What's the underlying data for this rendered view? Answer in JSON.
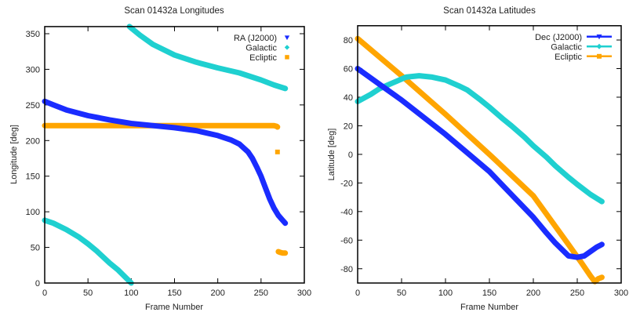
{
  "chart_data": [
    {
      "type": "scatter",
      "title": "Scan 01432a Longitudes",
      "xlabel": "Frame Number",
      "ylabel": "Longitude [deg]",
      "xlim": [
        0,
        300
      ],
      "ylim": [
        0,
        360
      ],
      "xticks": [
        0,
        50,
        100,
        150,
        200,
        250,
        300
      ],
      "yticks": [
        0,
        50,
        100,
        150,
        200,
        250,
        300,
        350
      ],
      "grid": false,
      "legend_position": "top-right",
      "legend_style": "points",
      "series": [
        {
          "name": "RA (J2000)",
          "color": "#1a2cff",
          "marker": "triangle-down",
          "segments": [
            [
              [
                0,
                255
              ],
              [
                10,
                250
              ],
              [
                25,
                243
              ],
              [
                50,
                235
              ],
              [
                75,
                229
              ],
              [
                100,
                224
              ],
              [
                125,
                221
              ],
              [
                150,
                218
              ],
              [
                175,
                214
              ],
              [
                200,
                207
              ],
              [
                215,
                201
              ],
              [
                225,
                195
              ],
              [
                235,
                184
              ],
              [
                240,
                175
              ],
              [
                245,
                163
              ],
              [
                250,
                150
              ],
              [
                255,
                134
              ],
              [
                260,
                118
              ],
              [
                265,
                105
              ],
              [
                270,
                95
              ],
              [
                275,
                88
              ],
              [
                278,
                84
              ]
            ]
          ]
        },
        {
          "name": "Galactic",
          "color": "#1fd0d0",
          "marker": "diamond",
          "segments": [
            [
              [
                0,
                88
              ],
              [
                10,
                84
              ],
              [
                25,
                75
              ],
              [
                40,
                64
              ],
              [
                50,
                55
              ],
              [
                60,
                45
              ],
              [
                75,
                28
              ],
              [
                85,
                18
              ],
              [
                100,
                0
              ]
            ],
            [
              [
                98,
                360
              ],
              [
                110,
                348
              ],
              [
                125,
                335
              ],
              [
                150,
                320
              ],
              [
                175,
                310
              ],
              [
                200,
                302
              ],
              [
                225,
                295
              ],
              [
                250,
                285
              ],
              [
                265,
                278
              ],
              [
                278,
                273
              ]
            ]
          ]
        },
        {
          "name": "Ecliptic",
          "color": "#ffa500",
          "marker": "square",
          "segments": [
            [
              [
                0,
                221
              ],
              [
                50,
                221
              ],
              [
                100,
                221
              ],
              [
                150,
                221
              ],
              [
                200,
                221
              ],
              [
                250,
                221
              ],
              [
                265,
                221
              ],
              [
                268,
                220
              ],
              [
                269,
                219
              ]
            ],
            [
              [
                269,
                184
              ]
            ],
            [
              [
                270,
                44
              ],
              [
                272,
                43
              ],
              [
                275,
                42
              ],
              [
                278,
                42
              ]
            ]
          ]
        }
      ]
    },
    {
      "type": "line",
      "title": "Scan 01432a Latitudes",
      "xlabel": "Frame Number",
      "ylabel": "Latitude [deg]",
      "xlim": [
        0,
        300
      ],
      "ylim": [
        -90,
        90
      ],
      "xticks": [
        0,
        50,
        100,
        150,
        200,
        250,
        300
      ],
      "yticks": [
        -80,
        -60,
        -40,
        -20,
        0,
        20,
        40,
        60,
        80
      ],
      "grid": false,
      "legend_position": "top-right",
      "legend_style": "linespoints",
      "series": [
        {
          "name": "Dec (J2000)",
          "color": "#1a2cff",
          "marker": "triangle-down",
          "segments": [
            [
              [
                0,
                60
              ],
              [
                25,
                49
              ],
              [
                50,
                38
              ],
              [
                75,
                26
              ],
              [
                100,
                14
              ],
              [
                125,
                1
              ],
              [
                150,
                -12
              ],
              [
                175,
                -28
              ],
              [
                200,
                -44
              ],
              [
                215,
                -55
              ],
              [
                225,
                -62
              ],
              [
                235,
                -68
              ],
              [
                240,
                -71
              ],
              [
                250,
                -72
              ],
              [
                258,
                -71
              ],
              [
                265,
                -68
              ],
              [
                272,
                -65
              ],
              [
                278,
                -63
              ]
            ]
          ]
        },
        {
          "name": "Galactic",
          "color": "#1fd0d0",
          "marker": "diamond",
          "segments": [
            [
              [
                0,
                37
              ],
              [
                15,
                42
              ],
              [
                25,
                46
              ],
              [
                40,
                50
              ],
              [
                55,
                54
              ],
              [
                70,
                55
              ],
              [
                85,
                54
              ],
              [
                100,
                52
              ],
              [
                115,
                48
              ],
              [
                125,
                45
              ],
              [
                140,
                38
              ],
              [
                150,
                33
              ],
              [
                165,
                25
              ],
              [
                175,
                20
              ],
              [
                190,
                12
              ],
              [
                200,
                6
              ],
              [
                215,
                -2
              ],
              [
                225,
                -8
              ],
              [
                240,
                -16
              ],
              [
                250,
                -21
              ],
              [
                265,
                -28
              ],
              [
                278,
                -33
              ]
            ]
          ]
        },
        {
          "name": "Ecliptic",
          "color": "#ffa500",
          "marker": "square",
          "segments": [
            [
              [
                0,
                81
              ],
              [
                50,
                55
              ],
              [
                100,
                28
              ],
              [
                150,
                0
              ],
              [
                200,
                -29
              ],
              [
                240,
                -63
              ],
              [
                255,
                -76
              ],
              [
                265,
                -85
              ],
              [
                270,
                -89
              ],
              [
                274,
                -87
              ],
              [
                278,
                -86
              ]
            ]
          ]
        }
      ]
    }
  ]
}
